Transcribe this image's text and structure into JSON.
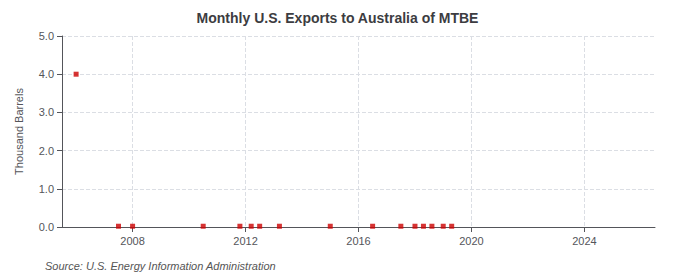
{
  "chart_data": {
    "type": "scatter",
    "title": "Monthly U.S. Exports to Australia of MTBE",
    "ylabel": "Thousand Barrels",
    "annotations": [
      "Source: U.S. Energy Information Administration"
    ],
    "x": [
      2006.0,
      2007.5,
      2008.0,
      2010.5,
      2011.8,
      2012.2,
      2012.5,
      2013.2,
      2015.0,
      2016.5,
      2017.5,
      2018.0,
      2018.3,
      2018.6,
      2019.0,
      2019.3
    ],
    "values": [
      4.0,
      0.02,
      0.02,
      0.02,
      0.02,
      0.02,
      0.02,
      0.02,
      0.02,
      0.02,
      0.02,
      0.02,
      0.02,
      0.02,
      0.02,
      0.02
    ],
    "color": "#cc0000",
    "marker": "square",
    "xlim": [
      2005.5,
      2026.5
    ],
    "xticks": [
      2008,
      2012,
      2016,
      2020,
      2024
    ],
    "ylim": [
      0.0,
      5.0
    ],
    "yticks": [
      {
        "value": 0.0,
        "label": "0.0"
      },
      {
        "value": 1.0,
        "label": "1.0"
      },
      {
        "value": 2.0,
        "label": "2.0"
      },
      {
        "value": 3.0,
        "label": "3.0"
      },
      {
        "value": 4.0,
        "label": "4.0"
      },
      {
        "value": 5.0,
        "label": "5.0"
      }
    ],
    "grid": true
  }
}
